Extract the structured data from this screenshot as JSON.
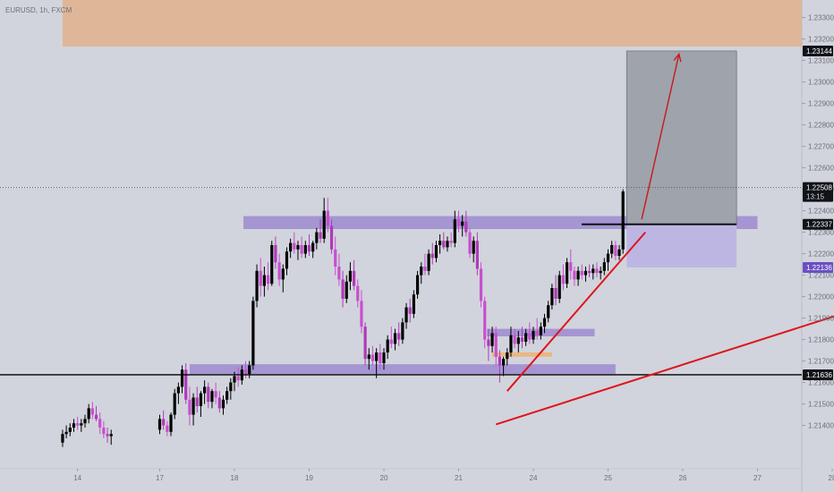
{
  "header": {
    "symbol_text": "EURUSD, 1h, FXCM"
  },
  "chart_data": {
    "type": "candlestick",
    "title": "EURUSD, 1h, FXCM",
    "xlabel": "",
    "ylabel": "",
    "ylim": [
      1.2134,
      1.235
    ],
    "grid": false,
    "y_ticks": [
      "1.23300",
      "1.23200",
      "1.23100",
      "1.23000",
      "1.22900",
      "1.22800",
      "1.22700",
      "1.22600",
      "1.22500",
      "1.22400",
      "1.22300",
      "1.22200",
      "1.22100",
      "1.22000",
      "1.21900",
      "1.21800",
      "1.21700",
      "1.21600",
      "1.21500",
      "1.21400"
    ],
    "x_ticks": [
      "14",
      "17",
      "18",
      "19",
      "20",
      "21",
      "24",
      "25",
      "26",
      "27",
      "28"
    ],
    "x_tick_day_index": [
      -0.1,
      1,
      2,
      3,
      4,
      5,
      6,
      7,
      8,
      9,
      10
    ],
    "price_tags": [
      {
        "label": "1.23144",
        "value": 1.23144,
        "style": "dark"
      },
      {
        "label": "1.22508",
        "value": 1.22508,
        "style": "dark",
        "sub": "13:15"
      },
      {
        "label": "1.22337",
        "value": 1.22337,
        "style": "dark"
      },
      {
        "label": "1.22136",
        "value": 1.22136,
        "style": "purple"
      },
      {
        "label": "1.21636",
        "value": 1.21636,
        "style": "dark"
      }
    ],
    "zones": [
      {
        "name": "supply-zone",
        "x0": -0.3,
        "x1": 10.4,
        "y0": 1.23165,
        "y1": 1.235,
        "color": "#e0b493"
      },
      {
        "name": "resistance-zone",
        "x0": 2.12,
        "x1": 9.0,
        "y0": 1.22315,
        "y1": 1.22375,
        "color": "#9e8ad0"
      },
      {
        "name": "inner-zone",
        "x0": 5.38,
        "x1": 6.82,
        "y0": 1.21815,
        "y1": 1.2185,
        "color": "#9e8ad0"
      },
      {
        "name": "orange-block",
        "x0": 5.45,
        "x1": 6.25,
        "y0": 1.2172,
        "y1": 1.2174,
        "color": "#f0b070"
      },
      {
        "name": "support-zone",
        "x0": 1.4,
        "x1": 7.1,
        "y0": 1.2164,
        "y1": 1.21685,
        "color": "#9e8ad0"
      }
    ],
    "position": {
      "entry": 1.22337,
      "target": 1.23144,
      "stop": 1.22136,
      "x0": 7.25,
      "x1": 8.72
    },
    "hlines": [
      {
        "name": "current-price-line",
        "value": 1.22508,
        "dashed": true
      },
      {
        "name": "support-line",
        "value": 1.21636,
        "dashed": false
      }
    ],
    "lines": [
      {
        "name": "trendline-short",
        "x0": 5.65,
        "y0": 1.2156,
        "x1": 7.5,
        "y1": 1.223
      },
      {
        "name": "trendline-long",
        "x0": 5.5,
        "y0": 1.21405,
        "x1": 10.4,
        "y1": 1.2195
      }
    ],
    "arrow": {
      "x0": 7.45,
      "y0": 1.2236,
      "x1": 7.95,
      "y1": 1.2313
    },
    "candles": [
      [
        -0.3,
        1.2132,
        1.2138,
        1.213,
        1.2136
      ],
      [
        -0.25,
        1.2136,
        1.214,
        1.2134,
        1.2137
      ],
      [
        -0.2,
        1.2137,
        1.2141,
        1.2135,
        1.2139
      ],
      [
        -0.15,
        1.2139,
        1.2143,
        1.2137,
        1.2141
      ],
      [
        -0.1,
        1.2141,
        1.2144,
        1.2138,
        1.214
      ],
      [
        -0.05,
        1.214,
        1.2143,
        1.2137,
        1.2141
      ],
      [
        0.0,
        1.2141,
        1.2145,
        1.2139,
        1.2143
      ],
      [
        0.05,
        1.2143,
        1.215,
        1.2141,
        1.2148
      ],
      [
        0.1,
        1.2148,
        1.2151,
        1.2143,
        1.2145
      ],
      [
        0.15,
        1.2145,
        1.2149,
        1.2142,
        1.2143
      ],
      [
        0.2,
        1.2143,
        1.2146,
        1.2136,
        1.2139
      ],
      [
        0.25,
        1.2139,
        1.2142,
        1.2134,
        1.2136
      ],
      [
        0.3,
        1.2136,
        1.2139,
        1.2132,
        1.2135
      ],
      [
        0.35,
        1.2135,
        1.2138,
        1.2131,
        1.2136
      ],
      [
        1.0,
        1.2138,
        1.2145,
        1.2136,
        1.2143
      ],
      [
        1.05,
        1.2143,
        1.2147,
        1.2138,
        1.214
      ],
      [
        1.1,
        1.214,
        1.2142,
        1.2135,
        1.2137
      ],
      [
        1.15,
        1.2137,
        1.2146,
        1.2135,
        1.2145
      ],
      [
        1.2,
        1.2145,
        1.2157,
        1.2143,
        1.2155
      ],
      [
        1.25,
        1.2155,
        1.216,
        1.215,
        1.2158
      ],
      [
        1.3,
        1.2158,
        1.2168,
        1.2155,
        1.2166
      ],
      [
        1.35,
        1.2166,
        1.2169,
        1.215,
        1.2152
      ],
      [
        1.4,
        1.2152,
        1.2158,
        1.214,
        1.2145
      ],
      [
        1.45,
        1.2145,
        1.2155,
        1.214,
        1.2153
      ],
      [
        1.5,
        1.2153,
        1.2158,
        1.2146,
        1.2149
      ],
      [
        1.55,
        1.2149,
        1.2156,
        1.2144,
        1.2155
      ],
      [
        1.6,
        1.2155,
        1.2161,
        1.215,
        1.2158
      ],
      [
        1.65,
        1.2158,
        1.216,
        1.2148,
        1.2151
      ],
      [
        1.7,
        1.2151,
        1.2157,
        1.2148,
        1.2156
      ],
      [
        1.75,
        1.2156,
        1.216,
        1.215,
        1.2153
      ],
      [
        1.8,
        1.2153,
        1.2156,
        1.2146,
        1.2148
      ],
      [
        1.85,
        1.2148,
        1.2154,
        1.2145,
        1.2152
      ],
      [
        1.9,
        1.2152,
        1.2158,
        1.215,
        1.2156
      ],
      [
        1.95,
        1.2156,
        1.2162,
        1.2152,
        1.216
      ],
      [
        2.0,
        1.216,
        1.2165,
        1.2156,
        1.2163
      ],
      [
        2.05,
        1.2163,
        1.2167,
        1.2158,
        1.2161
      ],
      [
        2.1,
        1.2161,
        1.2168,
        1.2159,
        1.2166
      ],
      [
        2.15,
        1.2166,
        1.217,
        1.2162,
        1.2164
      ],
      [
        2.2,
        1.2164,
        1.217,
        1.2162,
        1.2168
      ],
      [
        2.25,
        1.2168,
        1.22,
        1.2166,
        1.2198
      ],
      [
        2.3,
        1.2198,
        1.2215,
        1.2195,
        1.2212
      ],
      [
        2.35,
        1.2212,
        1.2218,
        1.22,
        1.2205
      ],
      [
        2.4,
        1.2205,
        1.2214,
        1.22,
        1.221
      ],
      [
        2.45,
        1.221,
        1.2216,
        1.2203,
        1.2206
      ],
      [
        2.5,
        1.2206,
        1.2226,
        1.2205,
        1.2224
      ],
      [
        2.55,
        1.2224,
        1.2228,
        1.2213,
        1.2216
      ],
      [
        2.6,
        1.2216,
        1.222,
        1.2205,
        1.2208
      ],
      [
        2.65,
        1.2208,
        1.2215,
        1.2202,
        1.2213
      ],
      [
        2.7,
        1.2213,
        1.2223,
        1.221,
        1.2221
      ],
      [
        2.75,
        1.2221,
        1.2227,
        1.2218,
        1.2225
      ],
      [
        2.8,
        1.2225,
        1.223,
        1.222,
        1.2222
      ],
      [
        2.85,
        1.2222,
        1.2226,
        1.2217,
        1.2224
      ],
      [
        2.9,
        1.2224,
        1.2228,
        1.2218,
        1.222
      ],
      [
        2.95,
        1.222,
        1.2226,
        1.2218,
        1.2224
      ],
      [
        3.0,
        1.2224,
        1.2229,
        1.2219,
        1.2221
      ],
      [
        3.05,
        1.2221,
        1.2226,
        1.2218,
        1.2225
      ],
      [
        3.1,
        1.2225,
        1.2232,
        1.2222,
        1.223
      ],
      [
        3.15,
        1.223,
        1.2236,
        1.2225,
        1.2227
      ],
      [
        3.2,
        1.2227,
        1.2246,
        1.2225,
        1.224
      ],
      [
        3.25,
        1.224,
        1.2246,
        1.223,
        1.2233
      ],
      [
        3.3,
        1.2233,
        1.2236,
        1.222,
        1.2222
      ],
      [
        3.35,
        1.2222,
        1.2228,
        1.221,
        1.2214
      ],
      [
        3.4,
        1.2214,
        1.222,
        1.2205,
        1.2208
      ],
      [
        3.45,
        1.2208,
        1.2212,
        1.2195,
        1.2199
      ],
      [
        3.5,
        1.2199,
        1.221,
        1.2197,
        1.2207
      ],
      [
        3.55,
        1.2207,
        1.2216,
        1.2203,
        1.2212
      ],
      [
        3.6,
        1.2212,
        1.2217,
        1.2203,
        1.2205
      ],
      [
        3.65,
        1.2205,
        1.2208,
        1.2195,
        1.2198
      ],
      [
        3.7,
        1.2198,
        1.2203,
        1.2183,
        1.2186
      ],
      [
        3.75,
        1.2186,
        1.2188,
        1.2168,
        1.2171
      ],
      [
        3.8,
        1.2171,
        1.2176,
        1.2166,
        1.2173
      ],
      [
        3.85,
        1.2173,
        1.2177,
        1.2168,
        1.217
      ],
      [
        3.9,
        1.217,
        1.2176,
        1.2162,
        1.2174
      ],
      [
        3.95,
        1.2174,
        1.2178,
        1.2166,
        1.2169
      ],
      [
        4.0,
        1.2169,
        1.2176,
        1.2166,
        1.2174
      ],
      [
        4.05,
        1.2174,
        1.2182,
        1.2171,
        1.218
      ],
      [
        4.1,
        1.218,
        1.2186,
        1.2176,
        1.2178
      ],
      [
        4.15,
        1.2178,
        1.2185,
        1.2175,
        1.2183
      ],
      [
        4.2,
        1.2183,
        1.2188,
        1.2177,
        1.218
      ],
      [
        4.25,
        1.218,
        1.219,
        1.2178,
        1.2188
      ],
      [
        4.3,
        1.2188,
        1.2197,
        1.2185,
        1.2195
      ],
      [
        4.35,
        1.2195,
        1.2199,
        1.2188,
        1.2192
      ],
      [
        4.4,
        1.2192,
        1.2203,
        1.219,
        1.2201
      ],
      [
        4.45,
        1.2201,
        1.2212,
        1.2199,
        1.221
      ],
      [
        4.5,
        1.221,
        1.2216,
        1.2206,
        1.2214
      ],
      [
        4.55,
        1.2214,
        1.222,
        1.221,
        1.2212
      ],
      [
        4.6,
        1.2212,
        1.2222,
        1.221,
        1.222
      ],
      [
        4.65,
        1.222,
        1.2225,
        1.2215,
        1.2218
      ],
      [
        4.7,
        1.2218,
        1.2226,
        1.2216,
        1.2224
      ],
      [
        4.75,
        1.2224,
        1.2229,
        1.222,
        1.2226
      ],
      [
        4.8,
        1.2226,
        1.223,
        1.2222,
        1.2223
      ],
      [
        4.85,
        1.2223,
        1.2228,
        1.2221,
        1.2226
      ],
      [
        4.9,
        1.2226,
        1.223,
        1.2223,
        1.2225
      ],
      [
        4.95,
        1.2225,
        1.224,
        1.2223,
        1.2236
      ],
      [
        5.0,
        1.2236,
        1.224,
        1.223,
        1.2233
      ],
      [
        5.05,
        1.2233,
        1.2238,
        1.2228,
        1.2235
      ],
      [
        5.1,
        1.2235,
        1.224,
        1.2228,
        1.223
      ],
      [
        5.15,
        1.223,
        1.2232,
        1.2218,
        1.222
      ],
      [
        5.2,
        1.222,
        1.2228,
        1.2216,
        1.2226
      ],
      [
        5.25,
        1.2226,
        1.223,
        1.221,
        1.2213
      ],
      [
        5.3,
        1.2213,
        1.2216,
        1.2195,
        1.2198
      ],
      [
        5.35,
        1.2198,
        1.22,
        1.2176,
        1.218
      ],
      [
        5.4,
        1.218,
        1.2185,
        1.217,
        1.2177
      ],
      [
        5.45,
        1.2177,
        1.2186,
        1.2174,
        1.2183
      ],
      [
        5.5,
        1.2183,
        1.2186,
        1.2168,
        1.2172
      ],
      [
        5.55,
        1.2172,
        1.2175,
        1.216,
        1.2168
      ],
      [
        5.6,
        1.2168,
        1.2172,
        1.2163,
        1.2171
      ],
      [
        5.65,
        1.2171,
        1.2176,
        1.2168,
        1.2174
      ],
      [
        5.7,
        1.2174,
        1.2186,
        1.2172,
        1.2182
      ],
      [
        5.75,
        1.2182,
        1.2185,
        1.2176,
        1.2178
      ],
      [
        5.8,
        1.2178,
        1.2184,
        1.2174,
        1.2181
      ],
      [
        5.85,
        1.2181,
        1.2186,
        1.2176,
        1.2179
      ],
      [
        5.9,
        1.2179,
        1.2185,
        1.2177,
        1.2183
      ],
      [
        5.95,
        1.2183,
        1.2188,
        1.2178,
        1.218
      ],
      [
        6.0,
        1.218,
        1.2186,
        1.2178,
        1.2184
      ],
      [
        6.05,
        1.2184,
        1.219,
        1.218,
        1.2182
      ],
      [
        6.1,
        1.2182,
        1.2188,
        1.218,
        1.2186
      ],
      [
        6.15,
        1.2186,
        1.2192,
        1.2183,
        1.219
      ],
      [
        6.2,
        1.219,
        1.2198,
        1.2188,
        1.2196
      ],
      [
        6.25,
        1.2196,
        1.2206,
        1.2194,
        1.2204
      ],
      [
        6.3,
        1.2204,
        1.221,
        1.2196,
        1.2199
      ],
      [
        6.35,
        1.2199,
        1.2212,
        1.2197,
        1.221
      ],
      [
        6.4,
        1.221,
        1.2215,
        1.2203,
        1.2206
      ],
      [
        6.45,
        1.2206,
        1.2218,
        1.2204,
        1.2216
      ],
      [
        6.5,
        1.2216,
        1.2222,
        1.2208,
        1.2212
      ],
      [
        6.55,
        1.2212,
        1.2214,
        1.2205,
        1.2208
      ],
      [
        6.6,
        1.2208,
        1.2214,
        1.2205,
        1.2212
      ],
      [
        6.65,
        1.2212,
        1.2215,
        1.2208,
        1.221
      ],
      [
        6.7,
        1.221,
        1.2214,
        1.2207,
        1.2212
      ],
      [
        6.75,
        1.2212,
        1.2215,
        1.2209,
        1.2211
      ],
      [
        6.8,
        1.2211,
        1.2215,
        1.2208,
        1.2213
      ],
      [
        6.85,
        1.2213,
        1.2216,
        1.2209,
        1.2211
      ],
      [
        6.9,
        1.2211,
        1.2214,
        1.2208,
        1.2212
      ],
      [
        6.95,
        1.2212,
        1.2218,
        1.221,
        1.2216
      ],
      [
        7.0,
        1.2216,
        1.2222,
        1.2212,
        1.222
      ],
      [
        7.05,
        1.222,
        1.2226,
        1.2218,
        1.2224
      ],
      [
        7.1,
        1.2224,
        1.2226,
        1.2217,
        1.2219
      ],
      [
        7.15,
        1.2219,
        1.2224,
        1.2217,
        1.2222
      ],
      [
        7.2,
        1.2222,
        1.225,
        1.222,
        1.2249
      ]
    ]
  }
}
